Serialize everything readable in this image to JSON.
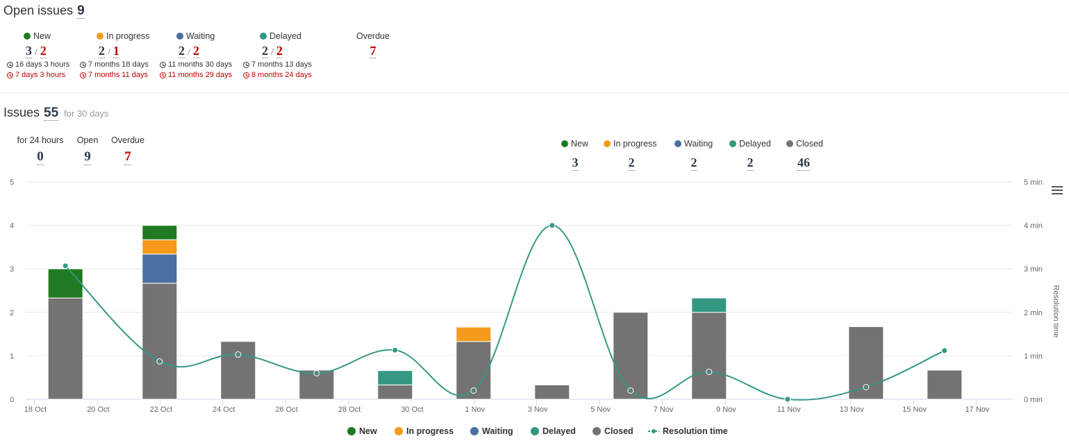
{
  "open_issues": {
    "title": "Open issues",
    "count": "9",
    "statuses": [
      {
        "label": "New",
        "color": "#1f7a22",
        "a": "3",
        "b": "2",
        "t1": "16 days 3 hours",
        "t2": "7 days 3 hours"
      },
      {
        "label": "In progress",
        "color": "#f69a1b",
        "a": "2",
        "b": "1",
        "t1": "7 months 18 days",
        "t2": "7 months 11 days"
      },
      {
        "label": "Waiting",
        "color": "#4a6fa0",
        "a": "2",
        "b": "2",
        "t1": "11 months 30 days",
        "t2": "11 months 29 days"
      },
      {
        "label": "Delayed",
        "color": "#349883",
        "a": "2",
        "b": "2",
        "t1": "7 months 13 days",
        "t2": "8 months 24 days"
      }
    ],
    "overdue": {
      "label": "Overdue",
      "value": "7"
    }
  },
  "issues": {
    "title": "Issues",
    "count": "55",
    "period": "for 30 days",
    "stats": [
      {
        "label": "for 24 hours",
        "value": "0"
      },
      {
        "label": "Open",
        "value": "9"
      },
      {
        "label": "Overdue",
        "value": "7"
      }
    ],
    "status_counts": [
      {
        "label": "New",
        "color": "#1f7a22",
        "value": "3"
      },
      {
        "label": "In progress",
        "color": "#f69a1b",
        "value": "2"
      },
      {
        "label": "Waiting",
        "color": "#4a6fa0",
        "value": "2"
      },
      {
        "label": "Delayed",
        "color": "#349883",
        "value": "2"
      },
      {
        "label": "Closed",
        "color": "#737373",
        "value": "46"
      }
    ]
  },
  "chart_data": {
    "type": "bar",
    "stacked": true,
    "x_ticks": [
      "18 Oct",
      "20 Oct",
      "22 Oct",
      "24 Oct",
      "26 Oct",
      "28 Oct",
      "30 Oct",
      "1 Nov",
      "3 Nov",
      "5 Nov",
      "7 Nov",
      "9 Nov",
      "11 Nov",
      "13 Nov",
      "15 Nov",
      "17 Nov"
    ],
    "y_left": {
      "ticks": [
        "0",
        "1",
        "2",
        "3",
        "4",
        "5"
      ],
      "range": [
        0,
        5
      ]
    },
    "y_right": {
      "ticks": [
        "0 min",
        "1 min",
        "2 min",
        "3 min",
        "4 min",
        "5 min"
      ],
      "range": [
        0,
        5
      ],
      "label": "Resolution time"
    },
    "bar_dates": [
      "19 Oct",
      "22 Oct",
      "24.5 Oct",
      "27 Oct",
      "29.5 Oct",
      "1 Nov",
      "3.5 Nov",
      "6 Nov",
      "8.5 Nov",
      "11 Nov",
      "13.5 Nov",
      "16 Nov"
    ],
    "series": [
      {
        "name": "New",
        "color": "#1f7a22",
        "values": [
          0.67,
          0.33,
          0,
          0,
          0,
          0,
          0,
          0,
          0,
          0,
          0,
          0
        ]
      },
      {
        "name": "In progress",
        "color": "#f69a1b",
        "values": [
          0,
          0.33,
          0,
          0,
          0,
          0.33,
          0,
          0,
          0,
          0,
          0,
          0
        ]
      },
      {
        "name": "Waiting",
        "color": "#4a6fa0",
        "values": [
          0,
          0.67,
          0,
          0,
          0,
          0,
          0,
          0,
          0,
          0,
          0,
          0
        ]
      },
      {
        "name": "Delayed",
        "color": "#349883",
        "values": [
          0,
          0,
          0,
          0,
          0.33,
          0,
          0,
          0,
          0.33,
          0,
          0,
          0
        ]
      },
      {
        "name": "Closed",
        "color": "#737373",
        "values": [
          2.33,
          2.67,
          1.33,
          0.67,
          0.33,
          1.33,
          0.33,
          2.0,
          2.0,
          0,
          1.67,
          0.67
        ]
      }
    ],
    "line": {
      "name": "Resolution time",
      "color": "#349883",
      "values": [
        3.07,
        0.87,
        1.03,
        0.6,
        1.13,
        0.2,
        4.0,
        0.2,
        0.63,
        0.0,
        0.28,
        1.12
      ]
    },
    "legend": [
      "New",
      "In progress",
      "Waiting",
      "Delayed",
      "Closed",
      "Resolution time"
    ],
    "legend_position": "bottom"
  }
}
